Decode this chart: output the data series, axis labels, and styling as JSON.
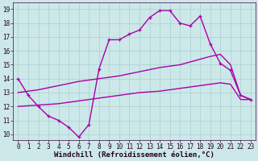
{
  "xlabel": "Windchill (Refroidissement éolien,°C)",
  "bg_color": "#cce8e8",
  "line_color": "#aa00aa",
  "xlim_min": -0.5,
  "xlim_max": 23.5,
  "ylim_min": 9.6,
  "ylim_max": 19.5,
  "xticks": [
    0,
    1,
    2,
    3,
    4,
    5,
    6,
    7,
    8,
    9,
    10,
    11,
    12,
    13,
    14,
    15,
    16,
    17,
    18,
    19,
    20,
    21,
    22,
    23
  ],
  "yticks": [
    10,
    11,
    12,
    13,
    14,
    15,
    16,
    17,
    18,
    19
  ],
  "curve1_x": [
    0,
    1,
    2,
    3,
    4,
    5,
    6,
    7,
    8,
    9,
    10,
    11,
    12,
    13,
    14,
    15,
    16,
    17,
    18,
    19,
    20,
    21,
    22,
    23
  ],
  "curve1_y": [
    14.0,
    12.8,
    12.0,
    11.3,
    11.0,
    10.5,
    9.8,
    10.7,
    14.7,
    16.8,
    16.8,
    17.2,
    17.5,
    18.4,
    18.9,
    18.9,
    18.0,
    17.8,
    18.5,
    16.5,
    15.1,
    14.6,
    12.8,
    12.5
  ],
  "curve2_x": [
    0,
    1,
    2,
    3,
    4,
    5,
    6,
    7,
    8,
    9,
    10,
    11,
    12,
    13,
    14,
    15,
    16,
    17,
    18,
    19,
    20,
    21,
    22,
    23
  ],
  "curve2_y": [
    13.0,
    13.1,
    13.2,
    13.35,
    13.5,
    13.65,
    13.8,
    13.9,
    14.0,
    14.1,
    14.2,
    14.35,
    14.5,
    14.65,
    14.8,
    14.9,
    15.0,
    15.2,
    15.4,
    15.6,
    15.75,
    15.0,
    12.8,
    12.5
  ],
  "curve3_x": [
    0,
    1,
    2,
    3,
    4,
    5,
    6,
    7,
    8,
    9,
    10,
    11,
    12,
    13,
    14,
    15,
    16,
    17,
    18,
    19,
    20,
    21,
    22,
    23
  ],
  "curve3_y": [
    12.0,
    12.05,
    12.1,
    12.15,
    12.2,
    12.3,
    12.4,
    12.5,
    12.6,
    12.7,
    12.8,
    12.9,
    13.0,
    13.05,
    13.1,
    13.2,
    13.3,
    13.4,
    13.5,
    13.6,
    13.7,
    13.6,
    12.5,
    12.5
  ],
  "linewidth": 1.0,
  "markersize": 3.5,
  "tick_fontsize": 5.5,
  "xlabel_fontsize": 6.5,
  "grid_color": "#aad0d0"
}
